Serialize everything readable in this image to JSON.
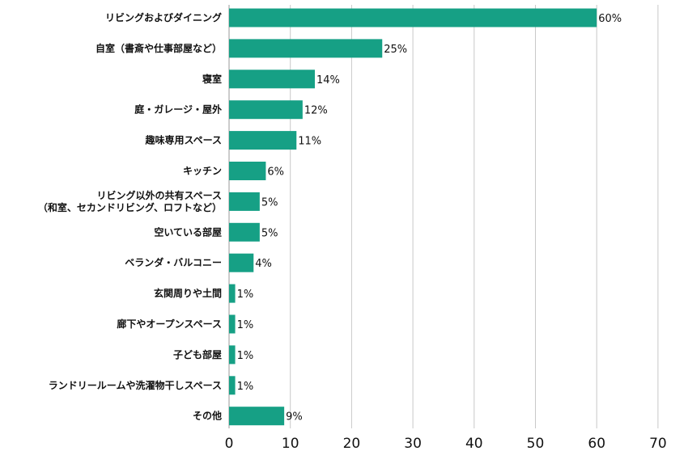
{
  "chart_data": {
    "type": "bar",
    "orientation": "horizontal",
    "categories": [
      [
        "リビングおよびダイニング"
      ],
      [
        "自室（書斎や仕事部屋など）"
      ],
      [
        "寝室"
      ],
      [
        "庭・ガレージ・屋外"
      ],
      [
        "趣味専用スペース"
      ],
      [
        "キッチン"
      ],
      [
        "リビング以外の共有スペース",
        "（和室、セカンドリビング、ロフトなど）"
      ],
      [
        "空いている部屋"
      ],
      [
        "ベランダ・バルコニー"
      ],
      [
        "玄関周りや土間"
      ],
      [
        "廊下やオープンスペース"
      ],
      [
        "子ども部屋"
      ],
      [
        "ランドリールームや洗濯物干しスペース"
      ],
      [
        "その他"
      ]
    ],
    "values": [
      60,
      25,
      14,
      12,
      11,
      6,
      5,
      5,
      4,
      1,
      1,
      1,
      1,
      9
    ],
    "value_labels": [
      "60%",
      "25%",
      "14%",
      "12%",
      "11%",
      "6%",
      "5%",
      "5%",
      "4%",
      "1%",
      "1%",
      "1%",
      "1%",
      "9%"
    ],
    "xlim": [
      0,
      70
    ],
    "xticks": [
      0,
      10,
      20,
      30,
      40,
      50,
      60,
      70
    ],
    "grid": true,
    "bar_color": "#16a085",
    "grid_color": "#c8c8c8"
  }
}
